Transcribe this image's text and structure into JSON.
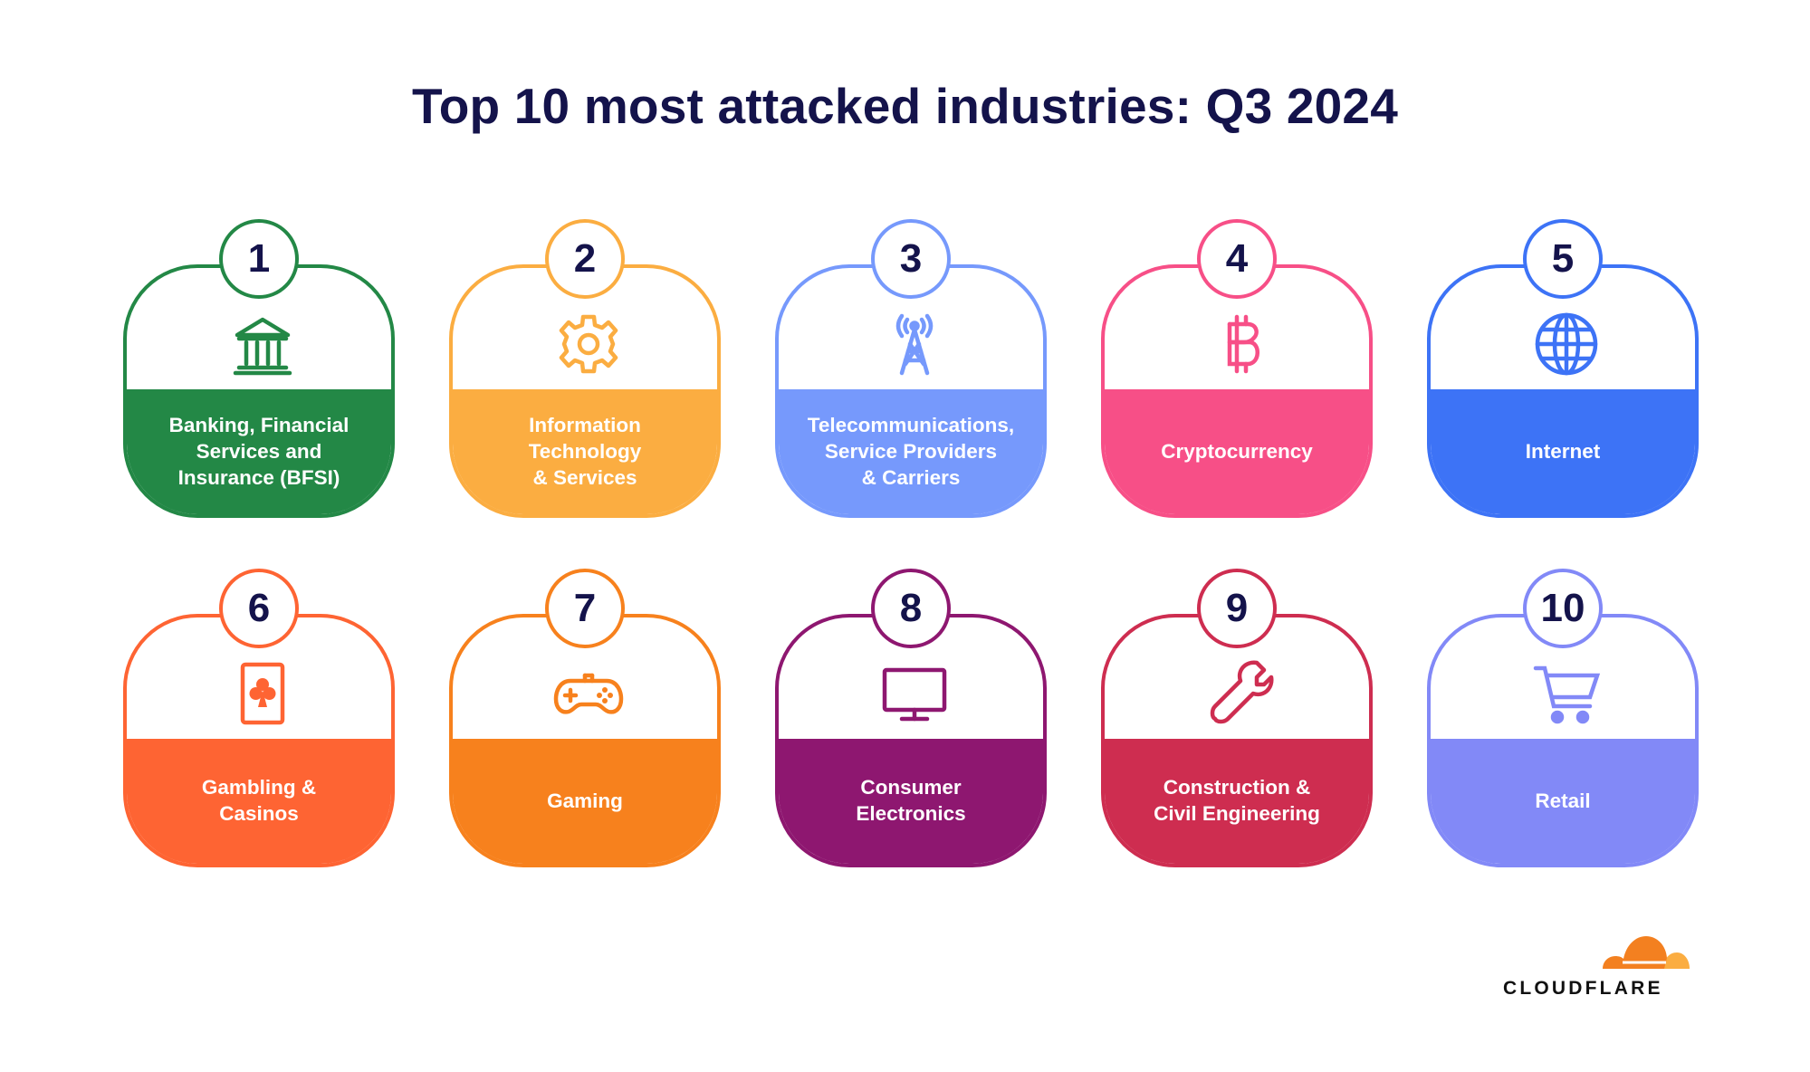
{
  "title": "Top 10 most attacked industries: Q3 2024",
  "industries": [
    {
      "rank": "1",
      "label": "Banking, Financial\nServices and\nInsurance (BFSI)",
      "icon": "bank-icon",
      "color": "#238846"
    },
    {
      "rank": "2",
      "label": "Information\nTechnology\n& Services",
      "icon": "gear-icon",
      "color": "#fbad41"
    },
    {
      "rank": "3",
      "label": "Telecommunications,\nService Providers\n& Carriers",
      "icon": "antenna-tower-icon",
      "color": "#7699fc"
    },
    {
      "rank": "4",
      "label": "Cryptocurrency",
      "icon": "bitcoin-icon",
      "color": "#f74f87"
    },
    {
      "rank": "5",
      "label": "Internet",
      "icon": "globe-icon",
      "color": "#3d73f6"
    },
    {
      "rank": "6",
      "label": "Gambling &\nCasinos",
      "icon": "playing-card-club-icon",
      "color": "#fe6433"
    },
    {
      "rank": "7",
      "label": "Gaming",
      "icon": "gamepad-icon",
      "color": "#f7811d"
    },
    {
      "rank": "8",
      "label": "Consumer\nElectronics",
      "icon": "monitor-icon",
      "color": "#8e1770"
    },
    {
      "rank": "9",
      "label": "Construction &\nCivil Engineering",
      "icon": "wrench-icon",
      "color": "#ce2d50"
    },
    {
      "rank": "10",
      "label": "Retail",
      "icon": "shopping-cart-icon",
      "color": "#8289f7"
    }
  ],
  "logo": {
    "text": "CLOUDFLARE",
    "icon": "cloudflare-cloud-icon",
    "colors": [
      "#f38020",
      "#fbad41"
    ]
  }
}
